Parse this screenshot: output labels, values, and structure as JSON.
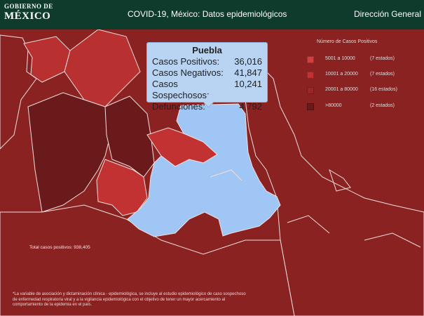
{
  "header": {
    "logo_line1": "GOBIERNO DE",
    "logo_line2": "MÉXICO",
    "title": "COVID-19, México: Datos epidemiológicos",
    "right": "Dirección General"
  },
  "tooltip": {
    "state": "Puebla",
    "rows": [
      {
        "label": "Casos Positivos:",
        "value": "36,016"
      },
      {
        "label": "Casos Negativos:",
        "value": "41,847"
      },
      {
        "label": "Casos Sospechosos:",
        "value": "10,241"
      },
      {
        "label": "Defunciones:",
        "value": "4,792"
      }
    ]
  },
  "legend": {
    "title": "Número de Casos Positivos",
    "items": [
      {
        "range": "5001 a  10000",
        "count": "(7 estados)",
        "color": "#d04040"
      },
      {
        "range": "10001 a  20000",
        "count": "(7 estados)",
        "color": "#c23232"
      },
      {
        "range": "20001 a  80000",
        "count": "(16 estados)",
        "color": "#9c2626"
      },
      {
        "range": ">80000",
        "count": "(2 estados)",
        "color": "#6a1a1a"
      }
    ]
  },
  "total": "Total casos positivos: 938,405",
  "footnote": "*La variable de asociación y dictaminación clínica - epidemiológica, se incluye al estudio epidemiológico de caso sospechoso de enfermedad respiratoria viral y a la vigilancia epidemiológica con el objetivo de tener un mayor acercamiento al comportamiento de la epidemia en el país.",
  "colors": {
    "header_bg": "#0f3b2c",
    "map_base": "#8b2222",
    "map_dark": "#6a1a1a",
    "map_light": "#c23232",
    "selected_state": "#9fc6f5",
    "tooltip_bg": "#b9d3f3"
  }
}
